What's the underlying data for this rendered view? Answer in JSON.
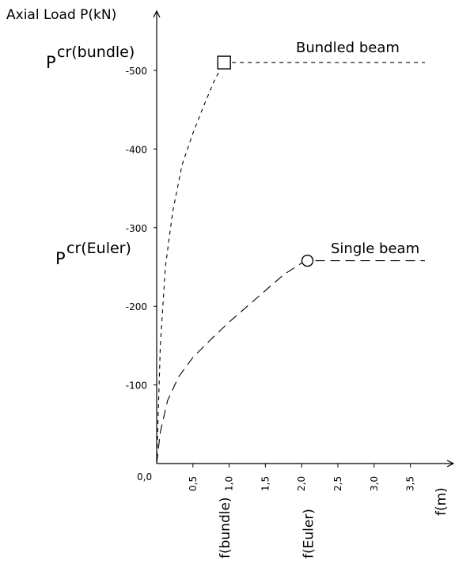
{
  "chart_data": {
    "type": "line",
    "ylabel": "Axial Load P(kN)",
    "xlabel": "f(m)",
    "xlim": [
      0.0,
      3.7
    ],
    "ylim": [
      0,
      -520
    ],
    "x_ticks": [
      "0,0",
      "0,5",
      "1,0",
      "1,5",
      "2,0",
      "2,5",
      "3,0",
      "3,5"
    ],
    "x_tick_values": [
      0.0,
      0.5,
      1.0,
      1.5,
      2.0,
      2.5,
      3.0,
      3.5
    ],
    "y_ticks": [
      "-100",
      "-200",
      "-300",
      "-400",
      "-500"
    ],
    "y_tick_values": [
      -100,
      -200,
      -300,
      -400,
      -500
    ],
    "x_markers": [
      {
        "label": "f(bundle)",
        "x": 0.93
      },
      {
        "label": "f(Euler)",
        "x": 2.08
      }
    ],
    "y_markers": [
      {
        "label_main": "P",
        "label_sup": "cr(bundle)",
        "y": -510
      },
      {
        "label_main": "P",
        "label_sup": "cr(Euler)",
        "y": -258
      }
    ],
    "series": [
      {
        "name": "Bundled beam",
        "marker": "square",
        "dash": "short",
        "x": [
          0.0,
          0.05,
          0.12,
          0.22,
          0.35,
          0.5,
          0.65,
          0.8,
          0.93
        ],
        "y": [
          0,
          -150,
          -250,
          -320,
          -380,
          -420,
          -455,
          -488,
          -510
        ],
        "plateau_y": -510,
        "plateau_to_x": 3.7
      },
      {
        "name": "Single beam",
        "marker": "circle",
        "dash": "long",
        "x": [
          0.0,
          0.05,
          0.15,
          0.3,
          0.5,
          0.75,
          1.0,
          1.25,
          1.5,
          1.75,
          2.0,
          2.08
        ],
        "y": [
          0,
          -40,
          -80,
          -110,
          -135,
          -158,
          -180,
          -200,
          -220,
          -240,
          -255,
          -258
        ],
        "plateau_y": -258,
        "plateau_to_x": 3.7
      }
    ]
  }
}
